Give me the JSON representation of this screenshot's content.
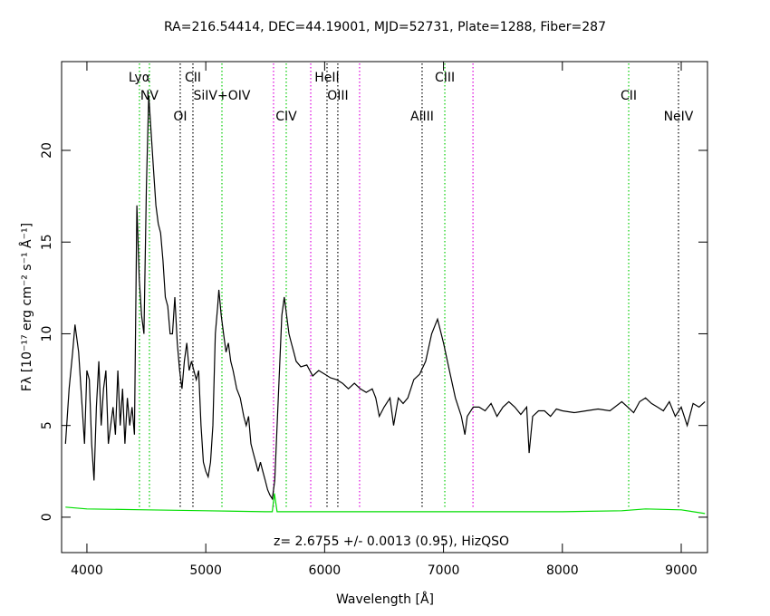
{
  "chart_data": {
    "type": "line",
    "title": "RA=216.54414, DEC=44.19001, MJD=52731, Plate=1288, Fiber=287",
    "x_label": "Wavelength [Å]",
    "y_label": "Fλ [10⁻¹⁷ erg cm⁻² s⁻¹ Å⁻¹]",
    "annotation": "z= 2.6755 +/- 0.0013 (0.95), HizQSO",
    "xlim": [
      3787,
      9221
    ],
    "ylim": [
      -1.93,
      24.84
    ],
    "xticks": [
      4000,
      5000,
      6000,
      7000,
      8000,
      9000
    ],
    "yticks": [
      0,
      5,
      10,
      15,
      20
    ],
    "series": [
      {
        "color": "#000000",
        "x": [
          3820,
          3850,
          3880,
          3900,
          3930,
          3960,
          3980,
          4000,
          4020,
          4040,
          4060,
          4080,
          4100,
          4120,
          4140,
          4160,
          4180,
          4200,
          4220,
          4240,
          4260,
          4280,
          4300,
          4320,
          4340,
          4360,
          4380,
          4400,
          4420,
          4440,
          4460,
          4480,
          4500,
          4520,
          4540,
          4560,
          4580,
          4600,
          4620,
          4640,
          4660,
          4680,
          4700,
          4720,
          4740,
          4760,
          4780,
          4800,
          4820,
          4840,
          4860,
          4880,
          4900,
          4920,
          4940,
          4960,
          4980,
          5000,
          5020,
          5040,
          5060,
          5080,
          5100,
          5110,
          5130,
          5150,
          5170,
          5190,
          5210,
          5230,
          5260,
          5290,
          5320,
          5340,
          5360,
          5380,
          5400,
          5420,
          5440,
          5460,
          5480,
          5500,
          5520,
          5540,
          5560,
          5580,
          5600,
          5620,
          5640,
          5660,
          5680,
          5700,
          5720,
          5740,
          5760,
          5800,
          5850,
          5900,
          5950,
          6000,
          6050,
          6100,
          6150,
          6200,
          6250,
          6300,
          6350,
          6400,
          6430,
          6460,
          6500,
          6550,
          6580,
          6620,
          6660,
          6700,
          6750,
          6800,
          6850,
          6900,
          6950,
          7000,
          7050,
          7100,
          7150,
          7180,
          7200,
          7250,
          7300,
          7350,
          7400,
          7450,
          7500,
          7550,
          7600,
          7650,
          7700,
          7720,
          7750,
          7800,
          7850,
          7900,
          7950,
          8000,
          8100,
          8200,
          8300,
          8400,
          8500,
          8550,
          8600,
          8650,
          8700,
          8750,
          8800,
          8850,
          8900,
          8950,
          9000,
          9050,
          9100,
          9150,
          9200
        ],
        "values": [
          4,
          7,
          9,
          10.5,
          9,
          6,
          4,
          8,
          7.5,
          4,
          2,
          6,
          8.5,
          5,
          7,
          8,
          4,
          5,
          6,
          4.5,
          8,
          5,
          7,
          4,
          6.5,
          5,
          6,
          4.5,
          17,
          13,
          11,
          10,
          18,
          23,
          21,
          19,
          17,
          16,
          15.5,
          14,
          12,
          11.5,
          10,
          10,
          12,
          9.5,
          8,
          7,
          8.5,
          9.5,
          8,
          8.5,
          8,
          7.5,
          8,
          5,
          3,
          2.5,
          2.2,
          3,
          5,
          10,
          11.5,
          12.4,
          11,
          10,
          9,
          9.5,
          8.5,
          8,
          7,
          6.5,
          5.5,
          5,
          5.5,
          4,
          3.5,
          3,
          2.5,
          3,
          2.5,
          2,
          1.5,
          1.2,
          1,
          2,
          5,
          8,
          11,
          12,
          11,
          10,
          9.5,
          9,
          8.5,
          8.2,
          8.3,
          7.7,
          8,
          7.8,
          7.6,
          7.5,
          7.3,
          7,
          7.3,
          7,
          6.8,
          7,
          6.5,
          5.5,
          6,
          6.5,
          5,
          6.5,
          6.2,
          6.5,
          7.5,
          7.8,
          8.5,
          10,
          10.8,
          9.5,
          8,
          6.5,
          5.5,
          4.5,
          5.5,
          6,
          6,
          5.8,
          6.2,
          5.5,
          6,
          6.3,
          6,
          5.6,
          6,
          3.5,
          5.5,
          5.8,
          5.8,
          5.5,
          5.9,
          5.8,
          5.7,
          5.8,
          5.9,
          5.8,
          6.3,
          6,
          5.7,
          6.3,
          6.5,
          6.2,
          6,
          5.8,
          6.3,
          5.5,
          6,
          5,
          6.2,
          6,
          6.3
        ]
      },
      {
        "color": "#00dd00",
        "x": [
          3820,
          4000,
          4500,
          5000,
          5500,
          5560,
          5577,
          5600,
          6000,
          6500,
          7000,
          7500,
          8000,
          8500,
          8700,
          9000,
          9200
        ],
        "values": [
          0.55,
          0.45,
          0.4,
          0.35,
          0.3,
          0.3,
          1.3,
          0.3,
          0.3,
          0.3,
          0.3,
          0.3,
          0.3,
          0.35,
          0.45,
          0.4,
          0.2
        ]
      }
    ],
    "line_markers": [
      {
        "label": "Lyα",
        "wavelength": 4442,
        "color": "#00cc00"
      },
      {
        "label": "NV",
        "wavelength": 4526,
        "color": "#00cc00"
      },
      {
        "label": "OI",
        "wavelength": 4785,
        "color": "#000000"
      },
      {
        "label": "CII",
        "wavelength": 4892,
        "color": "#000000"
      },
      {
        "label": "SiIV+OIV",
        "wavelength": 5136,
        "color": "#00cc00"
      },
      {
        "wavelength": 5570,
        "color": "#dd00dd"
      },
      {
        "label": "CIV",
        "wavelength": 5677,
        "color": "#00cc00"
      },
      {
        "wavelength": 5883,
        "color": "#dd00dd"
      },
      {
        "label": "HeII",
        "wavelength": 6020,
        "color": "#000000"
      },
      {
        "label": "OIII",
        "wavelength": 6111,
        "color": "#000000"
      },
      {
        "wavelength": 6294,
        "color": "#dd00dd"
      },
      {
        "label": "AlIII",
        "wavelength": 6820,
        "color": "#000000"
      },
      {
        "label": "CIII",
        "wavelength": 7011,
        "color": "#00cc00"
      },
      {
        "wavelength": 7248,
        "color": "#dd00dd"
      },
      {
        "label": "CII",
        "wavelength": 8558,
        "color": "#00cc00"
      },
      {
        "label": "NeIV",
        "wavelength": 8977,
        "color": "#000000"
      }
    ]
  }
}
